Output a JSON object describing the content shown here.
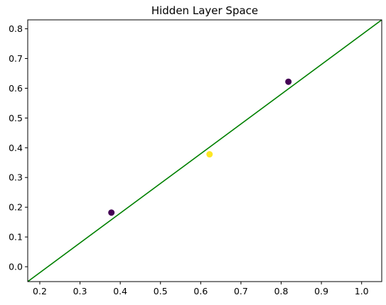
{
  "chart_data": {
    "type": "scatter",
    "title": "Hidden Layer Space",
    "xlabel": "",
    "ylabel": "",
    "xlim": [
      0.17,
      1.05
    ],
    "ylim": [
      -0.05,
      0.83
    ],
    "x_ticks": [
      0.2,
      0.3,
      0.4,
      0.5,
      0.6,
      0.7,
      0.8,
      0.9,
      1.0
    ],
    "y_ticks": [
      0.0,
      0.1,
      0.2,
      0.3,
      0.4,
      0.5,
      0.6,
      0.7,
      0.8
    ],
    "x_tick_labels": [
      "0.2",
      "0.3",
      "0.4",
      "0.5",
      "0.6",
      "0.7",
      "0.8",
      "0.9",
      "1.0"
    ],
    "y_tick_labels": [
      "0.0",
      "0.1",
      "0.2",
      "0.3",
      "0.4",
      "0.5",
      "0.6",
      "0.7",
      "0.8"
    ],
    "grid": false,
    "points": [
      {
        "x": 0.378,
        "y": 0.182,
        "class": 0,
        "color": "#440154"
      },
      {
        "x": 0.622,
        "y": 0.378,
        "class": 1,
        "color": "#fde725"
      },
      {
        "x": 0.818,
        "y": 0.622,
        "class": 0,
        "color": "#440154"
      }
    ],
    "lines": [
      {
        "points": [
          [
            0.17,
            -0.05
          ],
          [
            1.05,
            0.83
          ]
        ],
        "color": "#008000"
      }
    ]
  }
}
